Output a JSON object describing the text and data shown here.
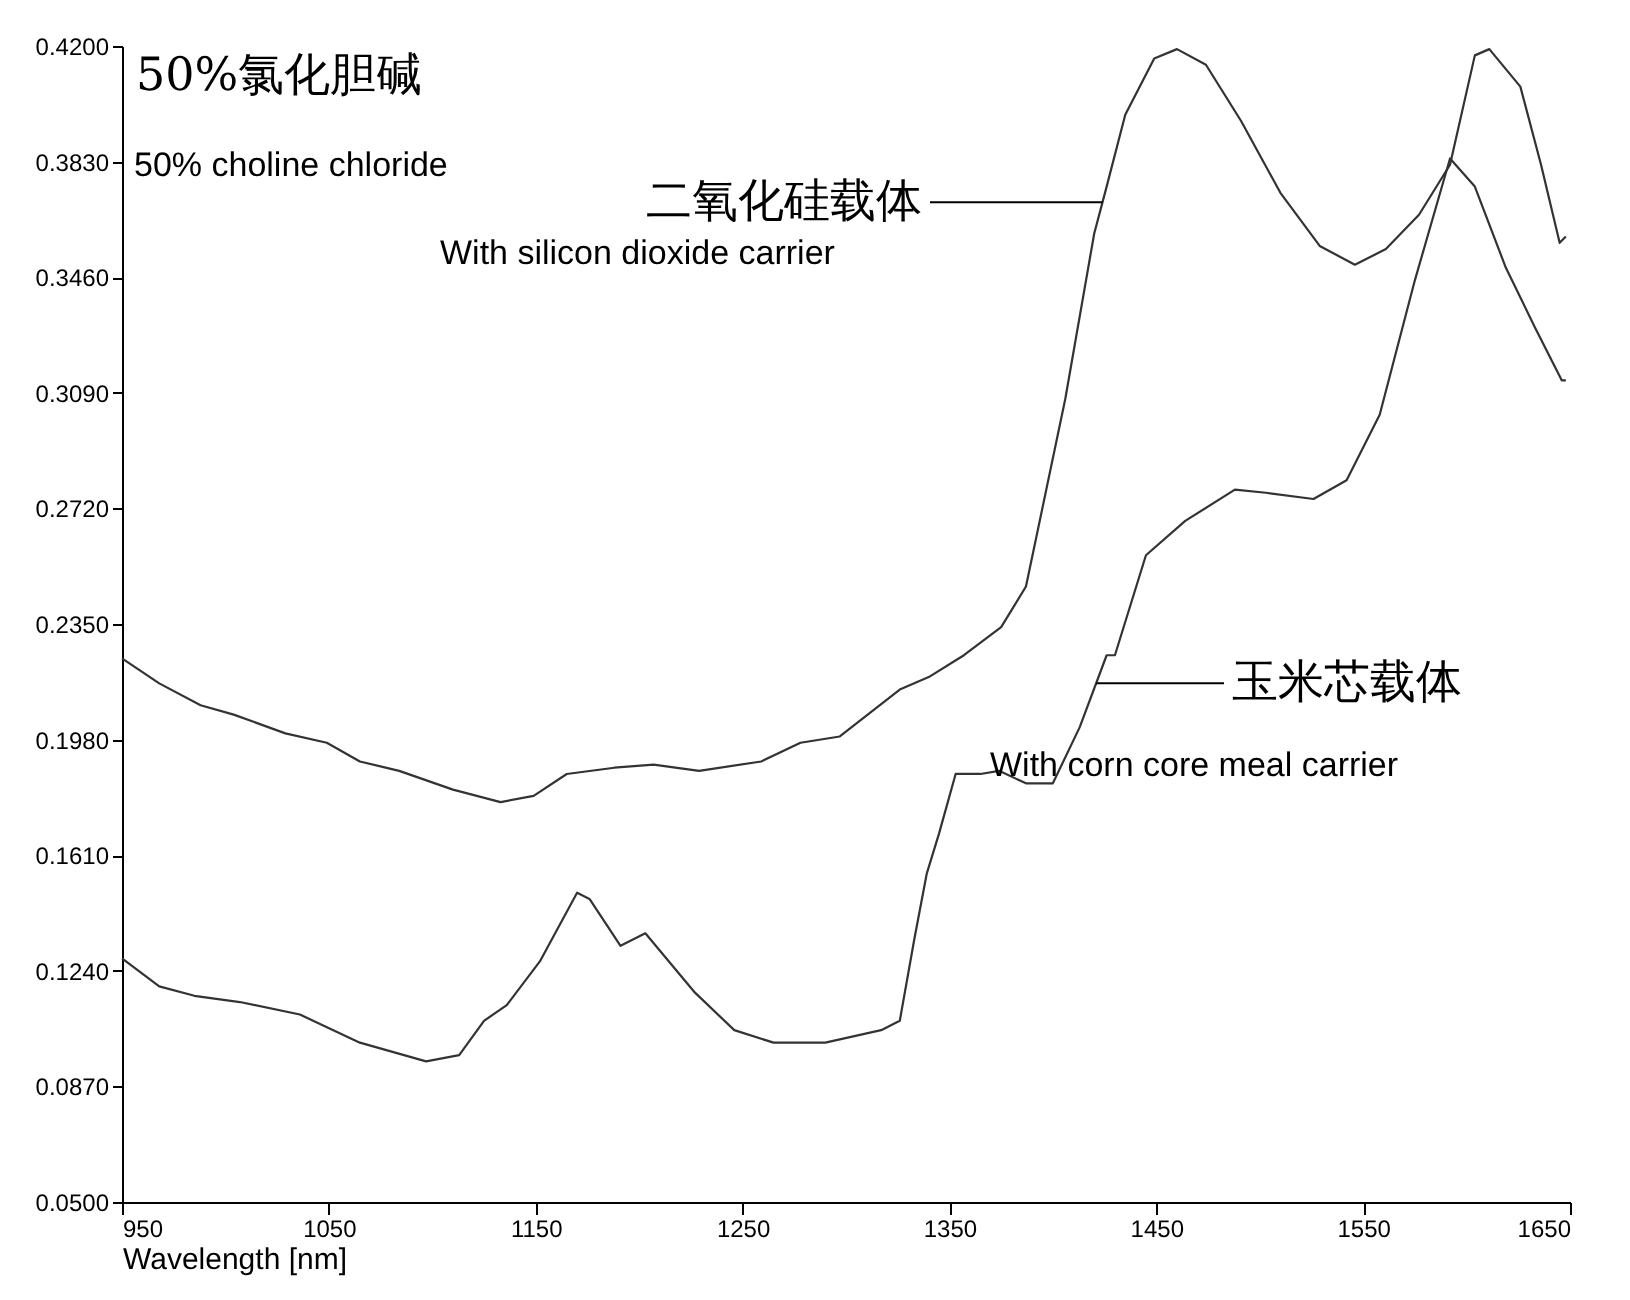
{
  "chart_data": {
    "type": "line",
    "xlabel": "Wavelength [nm]",
    "xlim": [
      950,
      1650
    ],
    "xticks": [
      950,
      1050,
      1150,
      1250,
      1350,
      1450,
      1550,
      1650
    ],
    "ylim": [
      0.05,
      0.42
    ],
    "yticks": [
      {
        "value": 0.05,
        "label": "0.0500"
      },
      {
        "value": 0.087,
        "label": "0.0870"
      },
      {
        "value": 0.124,
        "label": "0.1240"
      },
      {
        "value": 0.161,
        "label": "0.1610"
      },
      {
        "value": 0.198,
        "label": "0.1980"
      },
      {
        "value": 0.235,
        "label": "0.2350"
      },
      {
        "value": 0.272,
        "label": "0.2720"
      },
      {
        "value": 0.309,
        "label": "0.3090"
      },
      {
        "value": 0.346,
        "label": "0.3460"
      },
      {
        "value": 0.383,
        "label": "0.3830"
      },
      {
        "value": 0.42,
        "label": "0.4200"
      }
    ],
    "marker": "none",
    "line_style": "solid",
    "series": [
      {
        "color": "#333333",
        "x": [
          950,
          968,
          988,
          1004,
          1029,
          1049,
          1065,
          1084,
          1110,
          1133,
          1149,
          1165,
          1188,
          1207,
          1229,
          1259,
          1278,
          1297,
          1326,
          1340,
          1357,
          1375,
          1387,
          1406,
          1420,
          1426,
          1435,
          1449,
          1460,
          1474,
          1491,
          1510,
          1529,
          1546,
          1561,
          1577,
          1592,
          1604,
          1611,
          1626,
          1636,
          1645,
          1648
        ],
        "values": [
          0.224,
          0.216,
          0.209,
          0.206,
          0.2,
          0.197,
          0.191,
          0.188,
          0.182,
          0.178,
          0.18,
          0.187,
          0.189,
          0.19,
          0.188,
          0.191,
          0.197,
          0.199,
          0.214,
          0.218,
          0.225,
          0.234,
          0.247,
          0.307,
          0.36,
          0.375,
          0.398,
          0.416,
          0.419,
          0.414,
          0.396,
          0.373,
          0.356,
          0.35,
          0.355,
          0.366,
          0.382,
          0.417,
          0.419,
          0.407,
          0.382,
          0.357,
          0.359
        ]
      },
      {
        "color": "#333333",
        "x": [
          950,
          968,
          985,
          1007,
          1036,
          1065,
          1097,
          1113,
          1125,
          1136,
          1152,
          1170,
          1176,
          1191,
          1203,
          1227,
          1246,
          1265,
          1290,
          1317,
          1326,
          1333,
          1339,
          1345,
          1353,
          1365,
          1374,
          1387,
          1400,
          1413,
          1426,
          1430,
          1445,
          1464,
          1488,
          1503,
          1526,
          1542,
          1558,
          1575,
          1592,
          1604,
          1619,
          1633,
          1646,
          1648
        ],
        "values": [
          0.128,
          0.119,
          0.116,
          0.114,
          0.11,
          0.101,
          0.095,
          0.097,
          0.108,
          0.113,
          0.127,
          0.149,
          0.147,
          0.132,
          0.136,
          0.117,
          0.105,
          0.101,
          0.101,
          0.105,
          0.108,
          0.134,
          0.155,
          0.168,
          0.187,
          0.187,
          0.188,
          0.184,
          0.184,
          0.202,
          0.225,
          0.225,
          0.257,
          0.268,
          0.278,
          0.277,
          0.275,
          0.281,
          0.302,
          0.345,
          0.384,
          0.375,
          0.349,
          0.33,
          0.313,
          0.313
        ]
      }
    ],
    "annotations": [
      "50%氯化胆碱",
      "50% choline chloride",
      {
        "text": "二氧化硅载体",
        "x": 1424,
        "y": 0.37
      },
      "With silicon dioxide carrier",
      {
        "text": "玉米芯载体",
        "x": 1421,
        "y": 0.216
      },
      "With corn core meal carrier"
    ]
  }
}
